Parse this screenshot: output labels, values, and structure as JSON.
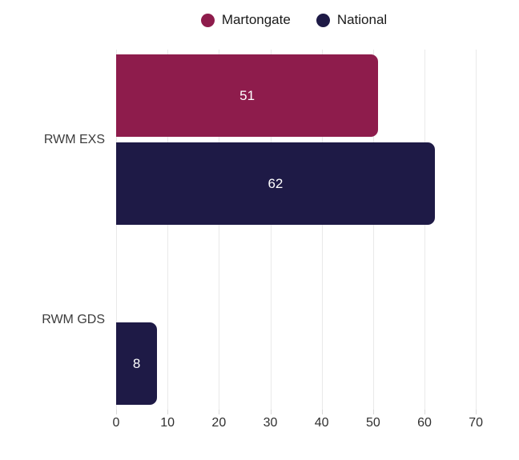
{
  "chart_data": {
    "type": "bar",
    "orientation": "horizontal",
    "title": "",
    "categories": [
      "RWM EXS",
      "RWM GDS"
    ],
    "series": [
      {
        "name": "Martongate",
        "color": "#8e1c4c",
        "values": [
          51,
          null
        ]
      },
      {
        "name": "National",
        "color": "#1e1a46",
        "values": [
          62,
          8
        ]
      }
    ],
    "bar_value_labels": true,
    "xticks": [
      0,
      10,
      20,
      30,
      40,
      50,
      60,
      70
    ],
    "xlim": [
      0,
      78.4
    ],
    "grid": "vertical",
    "legend_position": "top-center"
  },
  "colors": {
    "background": "#ffffff",
    "martongate": "#8e1c4c",
    "national": "#1e1a46",
    "gridline": "#e9e9e9",
    "axis_tick": "#d9d9d9",
    "bar_value_text": "#ffffff",
    "category_text": "#3c3c3c",
    "axis_text": "#2f2f2f",
    "legend_text": "#1a1a1a"
  }
}
